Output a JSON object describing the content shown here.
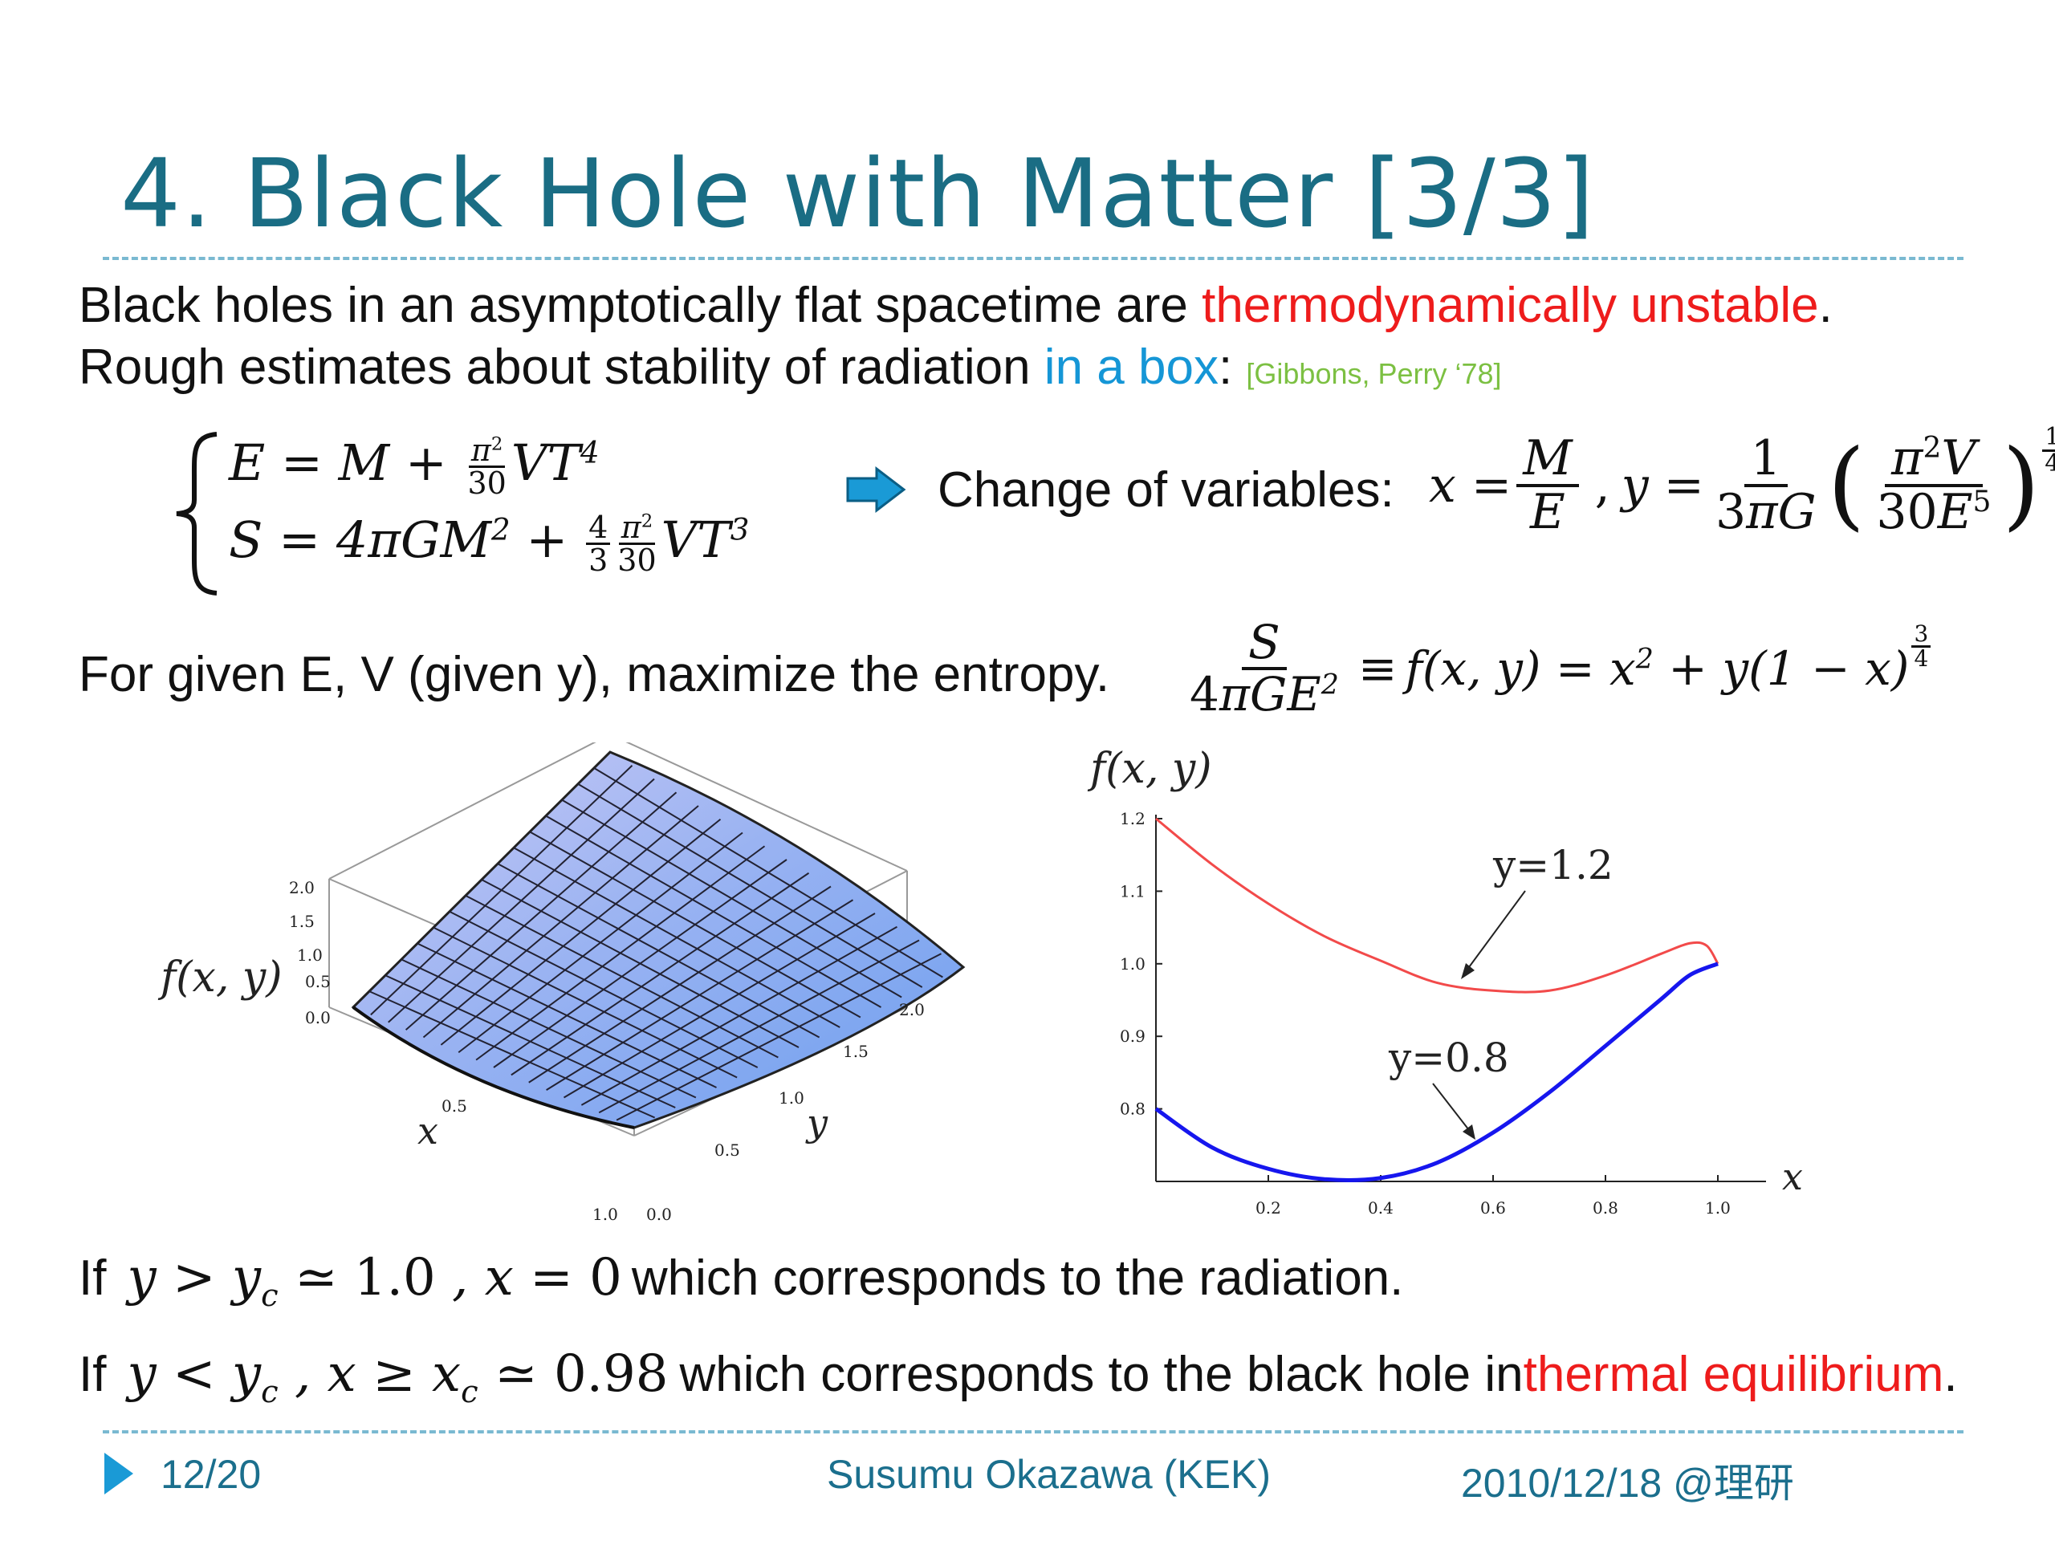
{
  "slide": {
    "title": "4. Black Hole with Matter [3/3]",
    "line1_a": "Black holes in an asymptotically flat spacetime are ",
    "line1_red": "thermodynamically unstable",
    "line1_end": ".",
    "line2_a": "Rough estimates about stability of radiation ",
    "line2_blue": "in a box",
    "line2_colon": ": ",
    "citation": "[Gibbons, Perry ‘78]",
    "change_vars": "Change of variables:",
    "entropy_text": "For given E, V (given y), maximize the entropy.",
    "cond1_if": "If",
    "cond1_text": "which corresponds to the radiation.",
    "cond2_if": "If",
    "cond2_text": "which corresponds to the black hole in ",
    "cond2_red": "thermal equilibrium",
    "cond2_end": ".",
    "footer": {
      "page": "12/20",
      "author": "Susumu Okazawa (KEK)",
      "date": "2010/12/18 @理研"
    }
  },
  "colors": {
    "title": "#1a6d84",
    "accent_red": "#ee1c1c",
    "accent_blue": "#1596d6",
    "citation": "#7cc042",
    "footer": "#1b6f8d",
    "arrow": "#1a9ad6"
  },
  "surface_plot": {
    "z_label": "f(x, y)",
    "x_label": "x",
    "y_label": "y",
    "z_ticks": [
      "2.0",
      "1.5",
      "1.0",
      "0.5",
      "0.0"
    ],
    "x_ticks": [
      "0.5",
      "1.0"
    ],
    "y_ticks": [
      "0.0",
      "0.5",
      "1.0",
      "1.5",
      "2.0"
    ]
  },
  "chart_data": {
    "type": "line",
    "title": "",
    "ylabel": "f(x, y)",
    "xlabel": "x",
    "xlim": [
      0,
      1.0
    ],
    "ylim": [
      0.7,
      1.2
    ],
    "x_ticks": [
      "0.2",
      "0.4",
      "0.6",
      "0.8",
      "1.0"
    ],
    "y_ticks": [
      "1.2",
      "1.1",
      "1.0",
      "0.9",
      "0.8"
    ],
    "series": [
      {
        "name": "y=1.2",
        "color": "#f24a4a",
        "x": [
          0,
          0.1,
          0.2,
          0.3,
          0.4,
          0.5,
          0.6,
          0.7,
          0.8,
          0.9,
          0.95,
          0.98,
          1.0
        ],
        "y": [
          1.2,
          1.1369,
          1.0829,
          1.0379,
          1.0042,
          0.9738,
          0.963,
          0.963,
          0.9838,
          1.0141,
          1.0283,
          1.025,
          1.0
        ]
      },
      {
        "name": "y=0.8",
        "color": "#1616ee",
        "x": [
          0,
          0.1,
          0.2,
          0.3,
          0.4,
          0.5,
          0.6,
          0.7,
          0.8,
          0.9,
          0.95,
          1.0
        ],
        "y": [
          0.8,
          0.7468,
          0.7174,
          0.7031,
          0.7047,
          0.7257,
          0.7673,
          0.8227,
          0.8868,
          0.9519,
          0.9843,
          1.0
        ]
      }
    ]
  }
}
